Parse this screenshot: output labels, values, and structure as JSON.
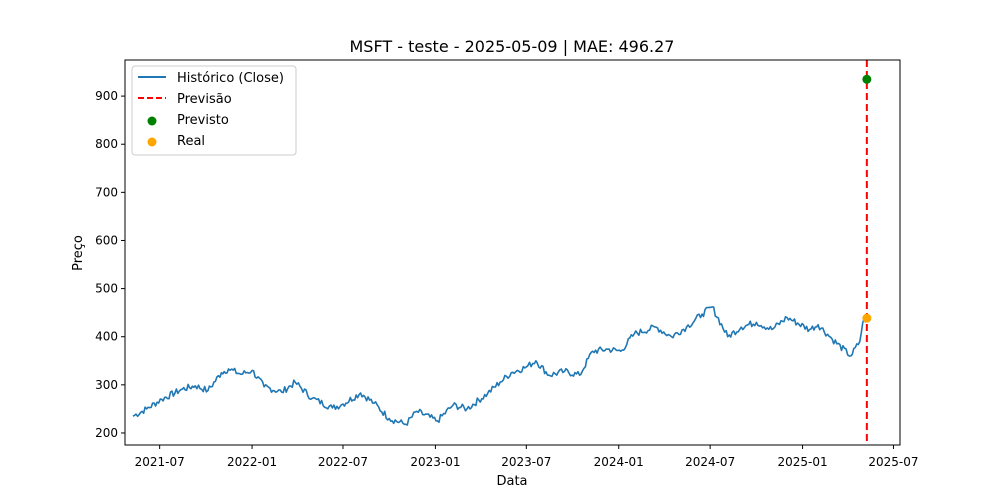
{
  "chart_data": {
    "type": "line",
    "title": "MSFT - teste - 2025-05-09 | MAE: 496.27",
    "xlabel": "Data",
    "ylabel": "Preço",
    "xlim": [
      "2021-04-23",
      "2025-07-14"
    ],
    "ylim": [
      175,
      975
    ],
    "grid": false,
    "legend_position": "top-left",
    "x_ticks": [
      "2021-07",
      "2022-01",
      "2022-07",
      "2023-01",
      "2023-07",
      "2024-01",
      "2024-07",
      "2025-01",
      "2025-07"
    ],
    "y_ticks": [
      200,
      300,
      400,
      500,
      600,
      700,
      800,
      900
    ],
    "series": [
      {
        "name": "Histórico (Close)",
        "kind": "line",
        "color": "#1f77b4",
        "points": [
          [
            "2021-05-09",
            235
          ],
          [
            "2021-06-05",
            250
          ],
          [
            "2021-07-05",
            270
          ],
          [
            "2021-08-15",
            291
          ],
          [
            "2021-09-10",
            298
          ],
          [
            "2021-10-05",
            288
          ],
          [
            "2021-11-01",
            325
          ],
          [
            "2021-11-15",
            333
          ],
          [
            "2021-12-10",
            322
          ],
          [
            "2022-01-01",
            330
          ],
          [
            "2022-01-25",
            296
          ],
          [
            "2022-03-01",
            285
          ],
          [
            "2022-03-28",
            305
          ],
          [
            "2022-05-01",
            272
          ],
          [
            "2022-06-10",
            252
          ],
          [
            "2022-07-01",
            260
          ],
          [
            "2022-08-05",
            283
          ],
          [
            "2022-09-01",
            262
          ],
          [
            "2022-10-01",
            230
          ],
          [
            "2022-11-03",
            218
          ],
          [
            "2022-11-25",
            245
          ],
          [
            "2023-01-05",
            225
          ],
          [
            "2023-02-05",
            258
          ],
          [
            "2023-03-05",
            250
          ],
          [
            "2023-04-15",
            282
          ],
          [
            "2023-05-10",
            306
          ],
          [
            "2023-06-01",
            325
          ],
          [
            "2023-07-01",
            337
          ],
          [
            "2023-07-20",
            350
          ],
          [
            "2023-08-15",
            320
          ],
          [
            "2023-09-15",
            328
          ],
          [
            "2023-10-15",
            320
          ],
          [
            "2023-11-10",
            370
          ],
          [
            "2023-12-10",
            374
          ],
          [
            "2024-01-05",
            370
          ],
          [
            "2024-02-01",
            406
          ],
          [
            "2024-03-15",
            420
          ],
          [
            "2024-04-15",
            400
          ],
          [
            "2024-05-15",
            420
          ],
          [
            "2024-06-15",
            447
          ],
          [
            "2024-07-05",
            462
          ],
          [
            "2024-08-05",
            400
          ],
          [
            "2024-09-01",
            420
          ],
          [
            "2024-10-01",
            430
          ],
          [
            "2024-11-01",
            415
          ],
          [
            "2024-12-01",
            440
          ],
          [
            "2025-01-15",
            415
          ],
          [
            "2025-02-01",
            425
          ],
          [
            "2025-03-01",
            395
          ],
          [
            "2025-04-07",
            360
          ],
          [
            "2025-04-25",
            390
          ],
          [
            "2025-05-01",
            430
          ],
          [
            "2025-05-09",
            438
          ]
        ]
      },
      {
        "name": "Previsão",
        "kind": "vline",
        "color": "#ff0000",
        "x": "2025-05-09"
      },
      {
        "name": "Previsto",
        "kind": "scatter",
        "color": "#008000",
        "points": [
          [
            "2025-05-09",
            934.9
          ]
        ]
      },
      {
        "name": "Real",
        "kind": "scatter",
        "color": "#ffa500",
        "points": [
          [
            "2025-05-09",
            438.6
          ]
        ]
      }
    ]
  }
}
